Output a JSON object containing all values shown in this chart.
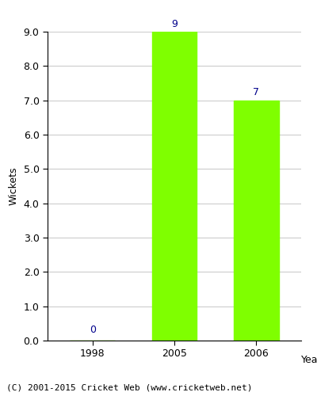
{
  "years": [
    "1998",
    "2005",
    "2006"
  ],
  "values": [
    0,
    9,
    7
  ],
  "bar_color": "#7fff00",
  "bar_edge_color": "#7fff00",
  "title": "",
  "xlabel": "Year",
  "ylabel": "Wickets",
  "ylim": [
    0.0,
    9.0
  ],
  "yticks": [
    0.0,
    1.0,
    2.0,
    3.0,
    4.0,
    5.0,
    6.0,
    7.0,
    8.0,
    9.0
  ],
  "annotation_color": "#00008b",
  "annotation_fontsize": 9,
  "footer_text": "(C) 2001-2015 Cricket Web (www.cricketweb.net)",
  "footer_fontsize": 8,
  "grid_color": "#cccccc",
  "background_color": "#ffffff",
  "bar_width": 0.55
}
